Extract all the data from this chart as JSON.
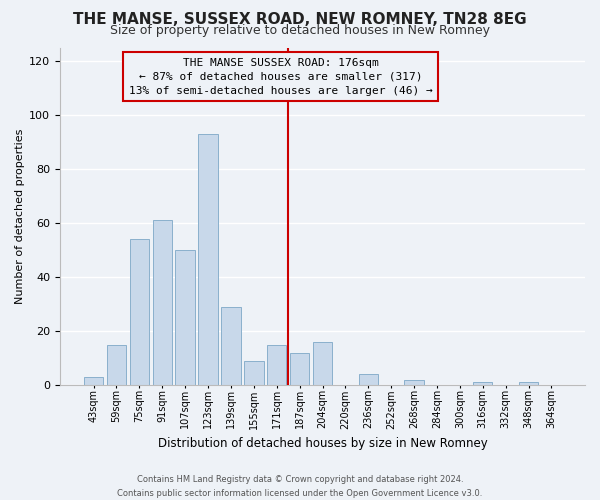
{
  "title": "THE MANSE, SUSSEX ROAD, NEW ROMNEY, TN28 8EG",
  "subtitle": "Size of property relative to detached houses in New Romney",
  "xlabel": "Distribution of detached houses by size in New Romney",
  "ylabel": "Number of detached properties",
  "bar_labels": [
    "43sqm",
    "59sqm",
    "75sqm",
    "91sqm",
    "107sqm",
    "123sqm",
    "139sqm",
    "155sqm",
    "171sqm",
    "187sqm",
    "204sqm",
    "220sqm",
    "236sqm",
    "252sqm",
    "268sqm",
    "284sqm",
    "300sqm",
    "316sqm",
    "332sqm",
    "348sqm",
    "364sqm"
  ],
  "bar_values": [
    3,
    15,
    54,
    61,
    50,
    93,
    29,
    9,
    15,
    12,
    16,
    0,
    4,
    0,
    2,
    0,
    0,
    1,
    0,
    1,
    0
  ],
  "bar_color": "#c8d8ea",
  "bar_edge_color": "#8ab0cc",
  "vline_color": "#cc0000",
  "annotation_title": "THE MANSE SUSSEX ROAD: 176sqm",
  "annotation_line1": "← 87% of detached houses are smaller (317)",
  "annotation_line2": "13% of semi-detached houses are larger (46) →",
  "annotation_box_edge": "#cc0000",
  "ylim": [
    0,
    125
  ],
  "yticks": [
    0,
    20,
    40,
    60,
    80,
    100,
    120
  ],
  "footer1": "Contains HM Land Registry data © Crown copyright and database right 2024.",
  "footer2": "Contains public sector information licensed under the Open Government Licence v3.0.",
  "background_color": "#eef2f7",
  "grid_color": "#ffffff",
  "title_fontsize": 11,
  "subtitle_fontsize": 9,
  "xlabel_fontsize": 8.5,
  "ylabel_fontsize": 8,
  "tick_fontsize": 7,
  "annotation_fontsize": 8,
  "footer_fontsize": 6
}
